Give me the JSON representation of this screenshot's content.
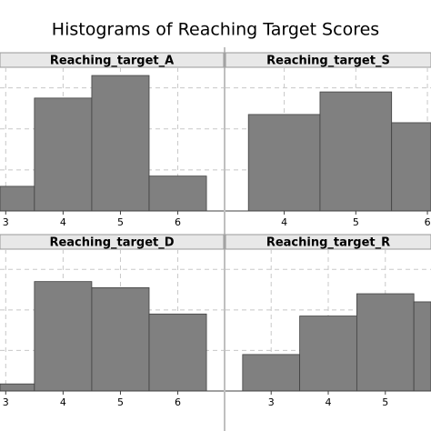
{
  "title": "Histograms of Reaching Target Scores",
  "chart_data": [
    {
      "type": "histogram",
      "title": "Reaching_target_A",
      "bins": [
        2.5,
        3.5,
        4.5,
        5.5,
        6.5
      ],
      "values": [
        1.2,
        5.5,
        6.6,
        1.7
      ],
      "color": "#808080",
      "xlim": [
        2.9,
        6.8
      ],
      "xticks": [
        3,
        4,
        5,
        6
      ],
      "ylim": [
        0,
        7
      ],
      "yticks": [
        2,
        4,
        6
      ],
      "grid": true
    },
    {
      "type": "histogram",
      "title": "Reaching_target_S",
      "bins": [
        3.5,
        4.5,
        5.5,
        6.5
      ],
      "values": [
        4.7,
        5.8,
        4.3
      ],
      "color": "#808080",
      "xlim": [
        3.18,
        6.05
      ],
      "xticks": [
        4,
        5,
        6
      ],
      "ylim": [
        0,
        7
      ],
      "yticks": [
        2,
        4,
        6
      ],
      "grid": true
    },
    {
      "type": "histogram",
      "title": "Reaching_target_D",
      "bins": [
        2.5,
        3.5,
        4.5,
        5.5,
        6.5
      ],
      "values": [
        0.35,
        5.4,
        5.1,
        3.8
      ],
      "color": "#808080",
      "xlim": [
        2.9,
        6.8
      ],
      "xticks": [
        3,
        4,
        5,
        6
      ],
      "ylim": [
        0,
        7
      ],
      "yticks": [
        2,
        4,
        6
      ],
      "grid": true
    },
    {
      "type": "histogram",
      "title": "Reaching_target_R",
      "bins": [
        2.5,
        3.5,
        4.5,
        5.5,
        6.5
      ],
      "values": [
        1.8,
        3.7,
        4.8,
        4.4
      ],
      "color": "#808080",
      "xlim": [
        2.2,
        5.8
      ],
      "xticks": [
        3,
        4,
        5
      ],
      "ylim": [
        0,
        7
      ],
      "yticks": [
        2,
        4,
        6
      ],
      "grid": true
    }
  ]
}
